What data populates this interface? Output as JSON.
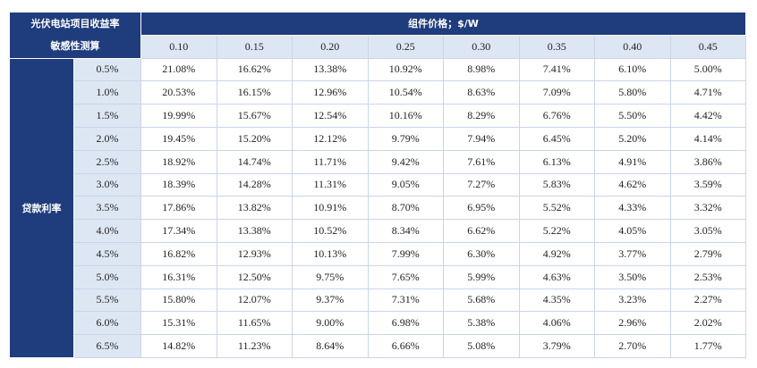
{
  "header": {
    "title": [
      "光伏电站项目收益率",
      "敏感性测算"
    ]
  },
  "table": {
    "column_header": "组件价格；$/W",
    "columns": [
      "0.10",
      "0.15",
      "0.20",
      "0.25",
      "0.30",
      "0.35",
      "0.40",
      "0.45"
    ],
    "row_header": "贷款利率",
    "rows": [
      {
        "rate": "0.5%",
        "values": [
          "21.08%",
          "16.62%",
          "13.38%",
          "10.92%",
          "8.98%",
          "7.41%",
          "6.10%",
          "5.00%"
        ]
      },
      {
        "rate": "1.0%",
        "values": [
          "20.53%",
          "16.15%",
          "12.96%",
          "10.54%",
          "8.63%",
          "7.09%",
          "5.80%",
          "4.71%"
        ]
      },
      {
        "rate": "1.5%",
        "values": [
          "19.99%",
          "15.67%",
          "12.54%",
          "10.16%",
          "8.29%",
          "6.76%",
          "5.50%",
          "4.42%"
        ]
      },
      {
        "rate": "2.0%",
        "values": [
          "19.45%",
          "15.20%",
          "12.12%",
          "9.79%",
          "7.94%",
          "6.45%",
          "5.20%",
          "4.14%"
        ]
      },
      {
        "rate": "2.5%",
        "values": [
          "18.92%",
          "14.74%",
          "11.71%",
          "9.42%",
          "7.61%",
          "6.13%",
          "4.91%",
          "3.86%"
        ]
      },
      {
        "rate": "3.0%",
        "values": [
          "18.39%",
          "14.28%",
          "11.31%",
          "9.05%",
          "7.27%",
          "5.83%",
          "4.62%",
          "3.59%"
        ]
      },
      {
        "rate": "3.5%",
        "values": [
          "17.86%",
          "13.82%",
          "10.91%",
          "8.70%",
          "6.95%",
          "5.52%",
          "4.33%",
          "3.32%"
        ]
      },
      {
        "rate": "4.0%",
        "values": [
          "17.34%",
          "13.38%",
          "10.52%",
          "8.34%",
          "6.62%",
          "5.22%",
          "4.05%",
          "3.05%"
        ]
      },
      {
        "rate": "4.5%",
        "values": [
          "16.82%",
          "12.93%",
          "10.13%",
          "7.99%",
          "6.30%",
          "4.92%",
          "3.77%",
          "2.79%"
        ]
      },
      {
        "rate": "5.0%",
        "values": [
          "16.31%",
          "12.50%",
          "9.75%",
          "7.65%",
          "5.99%",
          "4.63%",
          "3.50%",
          "2.53%"
        ]
      },
      {
        "rate": "5.5%",
        "values": [
          "15.80%",
          "12.07%",
          "9.37%",
          "7.31%",
          "5.68%",
          "4.35%",
          "3.23%",
          "2.27%"
        ]
      },
      {
        "rate": "6.0%",
        "values": [
          "15.31%",
          "11.65%",
          "9.00%",
          "6.98%",
          "5.38%",
          "4.06%",
          "2.96%",
          "2.02%"
        ]
      },
      {
        "rate": "6.5%",
        "values": [
          "14.82%",
          "11.23%",
          "8.64%",
          "6.66%",
          "5.08%",
          "3.79%",
          "2.70%",
          "1.77%"
        ]
      }
    ]
  }
}
